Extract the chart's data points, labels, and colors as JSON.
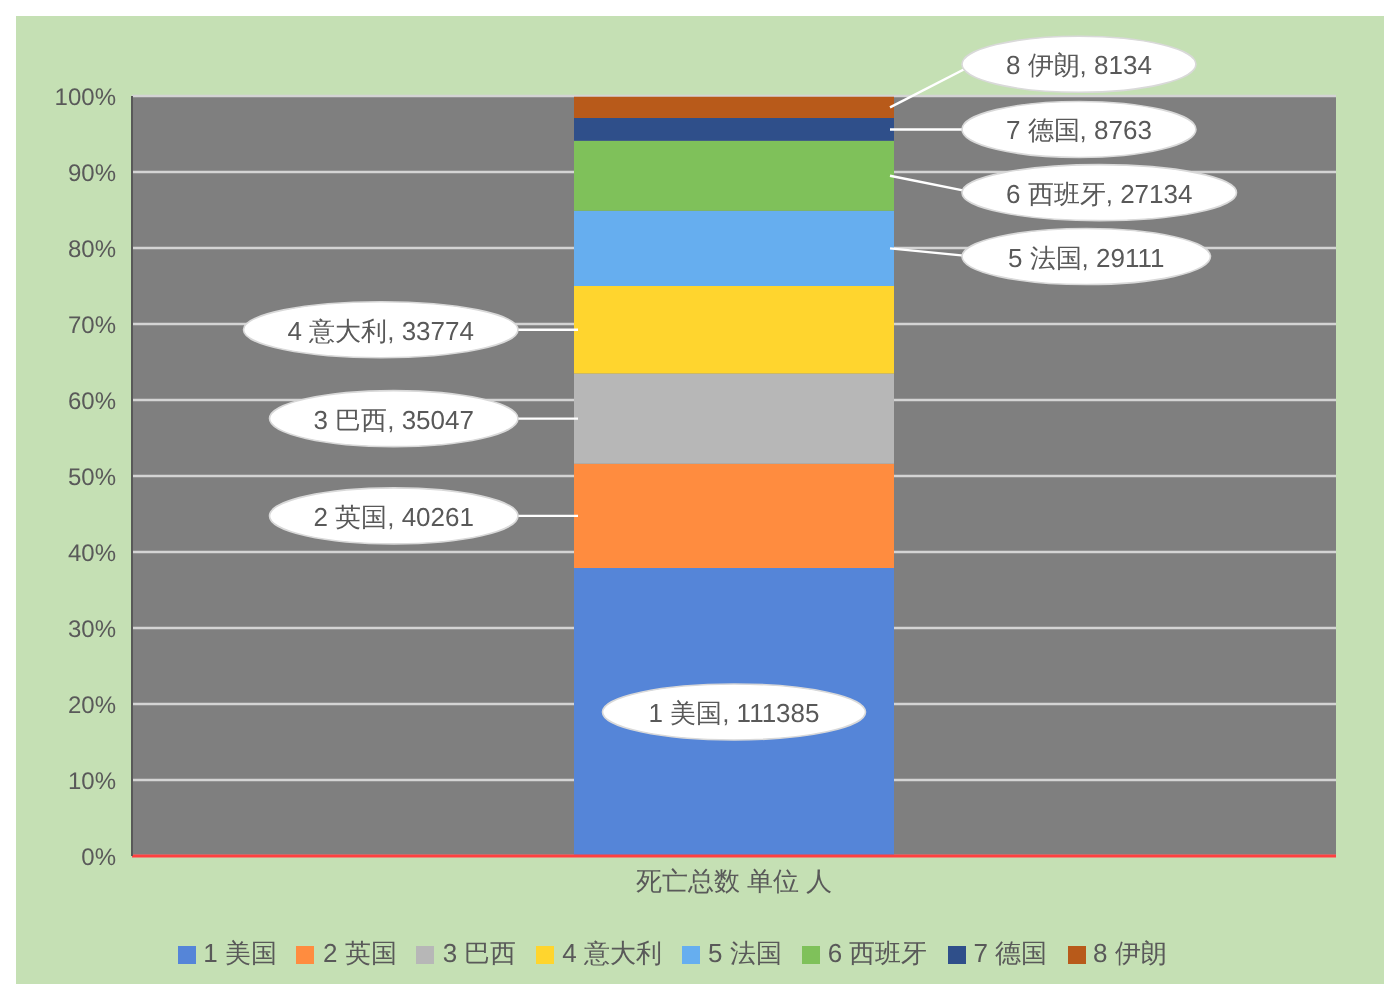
{
  "chart_data": {
    "type": "bar",
    "stacked": true,
    "categories": [
      "死亡总数 单位 人"
    ],
    "series": [
      {
        "name": "1 美国",
        "color": "#5585d8",
        "values": [
          37.9
        ]
      },
      {
        "name": "2 英国",
        "color": "#ff8c3f",
        "values": [
          13.7
        ]
      },
      {
        "name": "3 巴西",
        "color": "#b7b7b7",
        "values": [
          11.9
        ]
      },
      {
        "name": "4 意大利",
        "color": "#ffd52e",
        "values": [
          11.5
        ]
      },
      {
        "name": "5 法国",
        "color": "#66aeef",
        "values": [
          9.9
        ]
      },
      {
        "name": "6 西班牙",
        "color": "#7fc15a",
        "values": [
          9.2
        ]
      },
      {
        "name": "7 德国",
        "color": "#2f4f8a",
        "values": [
          3.0
        ]
      },
      {
        "name": "8 伊朗",
        "color": "#b85a1a",
        "values": [
          2.8
        ]
      }
    ],
    "annotations": [
      "1 美国, 111385",
      "2 英国, 40261",
      "3 巴西, 35047",
      "4 意大利, 33774",
      "5 法国, 29111",
      "6 西班牙, 27134",
      "7 德国, 8763",
      "8 伊朗, 8134"
    ],
    "ylim": [
      0,
      100
    ],
    "yticks": [
      {
        "value": 0,
        "label": "0%"
      },
      {
        "value": 10,
        "label": "10%"
      },
      {
        "value": 20,
        "label": "20%"
      },
      {
        "value": 30,
        "label": "30%"
      },
      {
        "value": 40,
        "label": "40%"
      },
      {
        "value": 50,
        "label": "50%"
      },
      {
        "value": 60,
        "label": "60%"
      },
      {
        "value": 70,
        "label": "70%"
      },
      {
        "value": 80,
        "label": "80%"
      },
      {
        "value": 90,
        "label": "90%"
      },
      {
        "value": 100,
        "label": "100%"
      }
    ],
    "grid": "y",
    "legend": "bottom"
  }
}
